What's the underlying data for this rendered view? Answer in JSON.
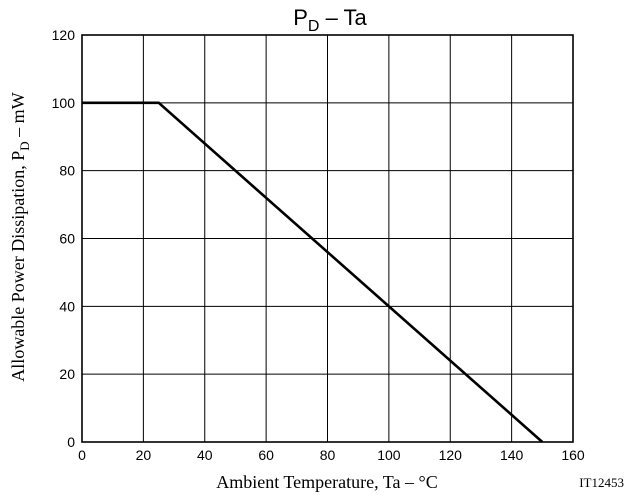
{
  "chart_data": {
    "type": "line",
    "title": "PD – Ta",
    "title_main": "P",
    "title_sub": "D",
    "title_rest": " –  Ta",
    "xlabel": "Ambient Temperature, Ta  –  °C",
    "ylabel_prefix": "Allowable Power Dissipation, P",
    "ylabel_sub": "D",
    "ylabel_suffix": "  –  mW",
    "xlim": [
      0,
      160
    ],
    "ylim": [
      0,
      120
    ],
    "x_ticks": [
      0,
      20,
      40,
      60,
      80,
      100,
      120,
      140,
      160
    ],
    "y_ticks": [
      0,
      20,
      40,
      60,
      80,
      100,
      120
    ],
    "grid": true,
    "series": [
      {
        "x": [
          0,
          25,
          150
        ],
        "y": [
          100,
          100,
          0
        ]
      }
    ]
  },
  "figure_code": "IT12453"
}
